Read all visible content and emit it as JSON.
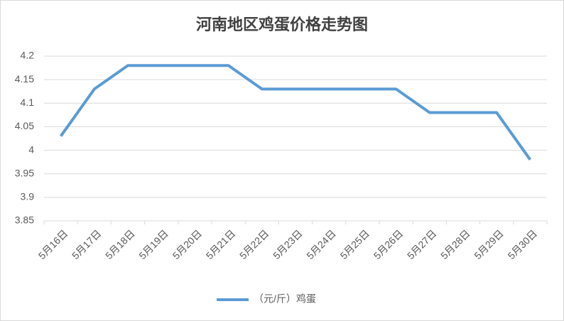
{
  "chart_data": {
    "type": "line",
    "title": "河南地区鸡蛋价格走势图",
    "categories": [
      "5月16日",
      "5月17日",
      "5月18日",
      "5月19日",
      "5月20日",
      "5月21日",
      "5月22日",
      "5月23日",
      "5月24日",
      "5月25日",
      "5月26日",
      "5月27日",
      "5月28日",
      "5月29日",
      "5月30日"
    ],
    "series": [
      {
        "name": "（元/斤）鸡蛋",
        "color": "#5b9bd5",
        "values": [
          4.03,
          4.13,
          4.18,
          4.18,
          4.18,
          4.18,
          4.13,
          4.13,
          4.13,
          4.13,
          4.13,
          4.08,
          4.08,
          4.08,
          3.98
        ]
      }
    ],
    "ylim": [
      3.85,
      4.2
    ],
    "yticks": [
      3.85,
      3.9,
      3.95,
      4,
      4.05,
      4.1,
      4.15,
      4.2
    ],
    "grid": true,
    "legend": "bottom"
  }
}
